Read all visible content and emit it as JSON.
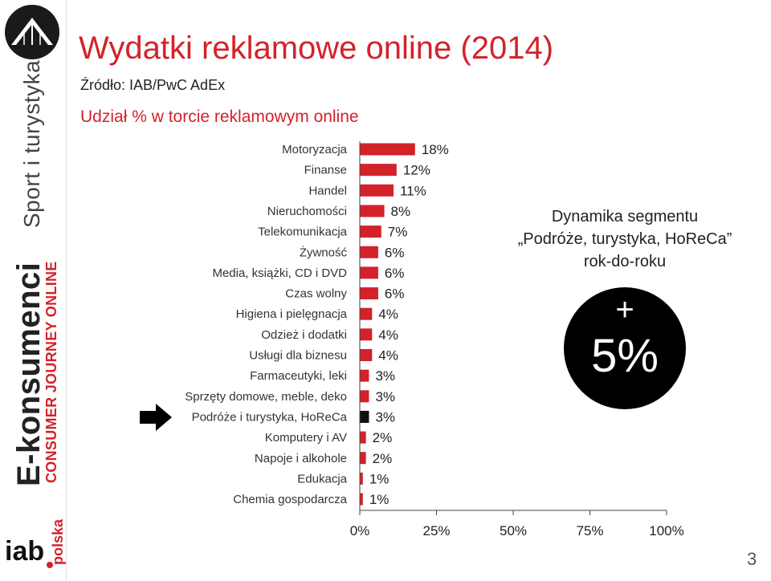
{
  "title": "Wydatki reklamowe online (2014)",
  "source": "Źródło: IAB/PwC AdEx",
  "subtitle": "Udział % w torcie reklamowym online",
  "sidebar": {
    "vertical_text_top": "Sport i turystyka",
    "vertical_text_brand": "E-konsumenci",
    "vertical_text_tagline": "CONSUMER JOURNEY ONLINE",
    "logo_text": "iab",
    "logo_suffix": "polska"
  },
  "colors": {
    "bar": "#d3222a",
    "highlight_bar": "#111111",
    "accent": "#d3222a"
  },
  "chart_data": {
    "type": "bar",
    "orientation": "horizontal",
    "categories": [
      "Motoryzacja",
      "Finanse",
      "Handel",
      "Nieruchomości",
      "Telekomunikacja",
      "Żywność",
      "Media, książki, CD i DVD",
      "Czas wolny",
      "Higiena i pielęgnacja",
      "Odzież i dodatki",
      "Usługi dla biznesu",
      "Farmaceutyki, leki",
      "Sprzęty domowe, meble, deko",
      "Podróże i turystyka, HoReCa",
      "Komputery i AV",
      "Napoje i alkohole",
      "Edukacja",
      "Chemia gospodarcza"
    ],
    "values": [
      18,
      12,
      11,
      8,
      7,
      6,
      6,
      6,
      4,
      4,
      4,
      3,
      3,
      3,
      2,
      2,
      1,
      1
    ],
    "value_labels": [
      "18%",
      "12%",
      "11%",
      "8%",
      "7%",
      "6%",
      "6%",
      "6%",
      "4%",
      "4%",
      "4%",
      "3%",
      "3%",
      "3%",
      "2%",
      "2%",
      "1%",
      "1%"
    ],
    "highlight_category": "Podróże i turystyka, HoReCa",
    "xlim": [
      0,
      100
    ],
    "xticks": [
      0,
      25,
      50,
      75,
      100
    ],
    "xtick_labels": [
      "0%",
      "25%",
      "50%",
      "75%",
      "100%"
    ],
    "grid": false
  },
  "callout": {
    "line1": "Dynamika segmentu",
    "line2": "„Podróże, turystyka, HoReCa”",
    "line3": "rok-do-roku",
    "sign": "+",
    "value": "5%"
  },
  "page_number": "3"
}
